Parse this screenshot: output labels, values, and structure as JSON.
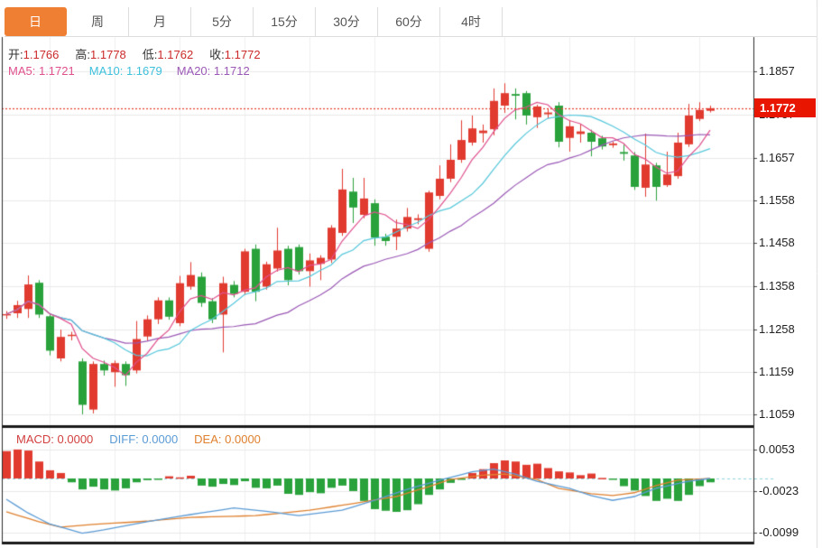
{
  "tabs": [
    {
      "label": "日",
      "active": true
    },
    {
      "label": "周",
      "active": false
    },
    {
      "label": "月",
      "active": false
    },
    {
      "label": "5分",
      "active": false
    },
    {
      "label": "15分",
      "active": false
    },
    {
      "label": "30分",
      "active": false
    },
    {
      "label": "60分",
      "active": false
    },
    {
      "label": "4时",
      "active": false
    }
  ],
  "quote": {
    "open_label": "开:",
    "open": "1.1766",
    "high_label": "高:",
    "high": "1.1778",
    "low_label": "低:",
    "low": "1.1762",
    "close_label": "收:",
    "close": "1.1772"
  },
  "ma": {
    "ma5_label": "MA5:",
    "ma5": "1.1721",
    "ma10_label": "MA10:",
    "ma10": "1.1679",
    "ma20_label": "MA20:",
    "ma20": "1.1712"
  },
  "macd_header": {
    "macd_label": "MACD:",
    "macd": "0.0000",
    "diff_label": "DIFF:",
    "diff": "0.0000",
    "dea_label": "DEA:",
    "dea": "0.0000"
  },
  "price_tag": "1.1772",
  "colors": {
    "up": "#e13b30",
    "down": "#2aa23c",
    "ma5": "#e0508e",
    "ma10": "#56c8dc",
    "ma20": "#9b59b6",
    "diff": "#5b9bd5",
    "dea": "#e0812f",
    "dotted_price_line": "#e83a2a",
    "tag_bg": "#e81600",
    "grid": "#e9e9e9",
    "axis": "#2b2b2b",
    "zero_dash": "#8fd4dc",
    "tab_active_bg": "#ee7f33"
  },
  "chart_data": {
    "type": "candlestick",
    "title": "",
    "legend_position": "top-left",
    "grid": true,
    "main": {
      "current_price": 1.1772,
      "ma_periods": [
        5,
        10,
        20
      ],
      "axis_ticks": [
        {
          "label": "1.1857",
          "price": 1.1857
        },
        {
          "label": "1.1757",
          "price": 1.1757
        },
        {
          "label": "1.1657",
          "price": 1.1657
        },
        {
          "label": "1.1558",
          "price": 1.1558
        },
        {
          "label": "1.1458",
          "price": 1.1458
        },
        {
          "label": "1.1358",
          "price": 1.1358
        },
        {
          "label": "1.1258",
          "price": 1.1258
        },
        {
          "label": "1.1159",
          "price": 1.1159
        },
        {
          "label": "1.1059",
          "price": 1.1059
        }
      ],
      "candles_ohlc": [
        [
          1.129,
          1.13,
          1.1282,
          1.1293
        ],
        [
          1.1295,
          1.1324,
          1.1284,
          1.1314
        ],
        [
          1.1305,
          1.1383,
          1.1284,
          1.1362
        ],
        [
          1.1366,
          1.1372,
          1.1284,
          1.1292
        ],
        [
          1.1288,
          1.1295,
          1.1197,
          1.1208
        ],
        [
          1.119,
          1.1257,
          1.1183,
          1.124
        ],
        [
          1.1242,
          1.1252,
          1.1232,
          1.1245
        ],
        [
          1.1183,
          1.119,
          1.106,
          1.1082
        ],
        [
          1.1071,
          1.1183,
          1.1062,
          1.1177
        ],
        [
          1.1177,
          1.1185,
          1.115,
          1.1162
        ],
        [
          1.1158,
          1.1185,
          1.1124,
          1.1179
        ],
        [
          1.1177,
          1.1183,
          1.1126,
          1.1151
        ],
        [
          1.1162,
          1.1277,
          1.1155,
          1.1235
        ],
        [
          1.1241,
          1.129,
          1.1232,
          1.1281
        ],
        [
          1.1281,
          1.1332,
          1.127,
          1.1325
        ],
        [
          1.1325,
          1.1332,
          1.128,
          1.1287
        ],
        [
          1.1272,
          1.1382,
          1.1265,
          1.1365
        ],
        [
          1.1357,
          1.1414,
          1.135,
          1.1384
        ],
        [
          1.138,
          1.139,
          1.131,
          1.1319
        ],
        [
          1.1323,
          1.133,
          1.1272,
          1.1281
        ],
        [
          1.1292,
          1.138,
          1.1204,
          1.1365
        ],
        [
          1.1361,
          1.137,
          1.1332,
          1.134
        ],
        [
          1.1345,
          1.1445,
          1.1338,
          1.1439
        ],
        [
          1.1445,
          1.1455,
          1.1323,
          1.1345
        ],
        [
          1.1357,
          1.1415,
          1.135,
          1.1409
        ],
        [
          1.1399,
          1.1494,
          1.1392,
          1.1441
        ],
        [
          1.1445,
          1.1452,
          1.136,
          1.1372
        ],
        [
          1.1449,
          1.1455,
          1.1385,
          1.1393
        ],
        [
          1.1393,
          1.1434,
          1.1357,
          1.1418
        ],
        [
          1.141,
          1.143,
          1.1372,
          1.1424
        ],
        [
          1.142,
          1.15,
          1.1412,
          1.1494
        ],
        [
          1.1482,
          1.1631,
          1.1475,
          1.1583
        ],
        [
          1.1578,
          1.161,
          1.1505,
          1.1541
        ],
        [
          1.1524,
          1.161,
          1.1516,
          1.1562
        ],
        [
          1.1551,
          1.156,
          1.1452,
          1.1471
        ],
        [
          1.1473,
          1.148,
          1.1452,
          1.1463
        ],
        [
          1.1473,
          1.1513,
          1.1442,
          1.1492
        ],
        [
          1.1492,
          1.154,
          1.1485,
          1.1519
        ],
        [
          1.1512,
          1.1525,
          1.1502,
          1.1516
        ],
        [
          1.1445,
          1.158,
          1.1438,
          1.1576
        ],
        [
          1.1568,
          1.1639,
          1.156,
          1.1608
        ],
        [
          1.1608,
          1.1688,
          1.16,
          1.1652
        ],
        [
          1.1652,
          1.1744,
          1.1645,
          1.1698
        ],
        [
          1.1692,
          1.1755,
          1.1685,
          1.1725
        ],
        [
          1.1714,
          1.1734,
          1.1692,
          1.172
        ],
        [
          1.1723,
          1.1818,
          1.1709,
          1.1789
        ],
        [
          1.1778,
          1.183,
          1.1761,
          1.1807
        ],
        [
          1.1805,
          1.1818,
          1.1746,
          1.1801
        ],
        [
          1.1807,
          1.1812,
          1.1734,
          1.1755
        ],
        [
          1.1751,
          1.178,
          1.1726,
          1.1776
        ],
        [
          1.1758,
          1.1772,
          1.1748,
          1.1762
        ],
        [
          1.1778,
          1.1786,
          1.1681,
          1.1694
        ],
        [
          1.1703,
          1.1744,
          1.1671,
          1.173
        ],
        [
          1.1712,
          1.1734,
          1.1692,
          1.1718
        ],
        [
          1.1715,
          1.1722,
          1.166,
          1.1694
        ],
        [
          1.1702,
          1.1708,
          1.1676,
          1.1683
        ],
        [
          1.1686,
          1.1694,
          1.168,
          1.169
        ],
        [
          1.167,
          1.1687,
          1.165,
          1.1666
        ],
        [
          1.1662,
          1.167,
          1.1582,
          1.1589
        ],
        [
          1.1587,
          1.1713,
          1.1566,
          1.1641
        ],
        [
          1.1639,
          1.1645,
          1.1557,
          1.1589
        ],
        [
          1.1593,
          1.1671,
          1.1589,
          1.1618
        ],
        [
          1.1614,
          1.1715,
          1.1608,
          1.1692
        ],
        [
          1.1688,
          1.1782,
          1.1682,
          1.1755
        ],
        [
          1.1747,
          1.1786,
          1.1742,
          1.1768
        ],
        [
          1.1766,
          1.1778,
          1.1762,
          1.1772
        ]
      ]
    },
    "macd": {
      "axis_ticks": [
        {
          "label": "0.0053",
          "value": 0.0053
        },
        {
          "label": "-0.0023",
          "value": -0.0023
        },
        {
          "label": "-0.0099",
          "value": -0.0099
        }
      ],
      "histogram": [
        0.005,
        0.0053,
        0.0051,
        0.0031,
        0.0015,
        0.001,
        -0.0007,
        -0.002,
        -0.0015,
        -0.002,
        -0.0022,
        -0.0018,
        -0.0007,
        -0.0003,
        -0.0001,
        0.0004,
        0.0002,
        0.0005,
        -0.0013,
        -0.0015,
        -0.001,
        -0.0012,
        -0.0005,
        -0.0017,
        -0.0018,
        -0.0013,
        -0.0028,
        -0.003,
        -0.0025,
        -0.0027,
        -0.0017,
        -0.0013,
        -0.0023,
        -0.0041,
        -0.0056,
        -0.0059,
        -0.0061,
        -0.0058,
        -0.0047,
        -0.003,
        -0.002,
        -0.0008,
        -0.0001,
        0.001,
        0.0017,
        0.0028,
        0.0033,
        0.0031,
        0.0025,
        0.0027,
        0.0019,
        0.0013,
        0.0011,
        0.0006,
        0.0009,
        0.0001,
        -0.0001,
        -0.0014,
        -0.0022,
        -0.0032,
        -0.0041,
        -0.0037,
        -0.0041,
        -0.003,
        -0.0014,
        -0.0007
      ],
      "diff_points": [
        [
          0,
          -0.0038
        ],
        [
          2,
          -0.0063
        ],
        [
          4,
          -0.0083
        ],
        [
          7,
          -0.01
        ],
        [
          9,
          -0.0094
        ],
        [
          13,
          -0.0079
        ],
        [
          16,
          -0.0069
        ],
        [
          21,
          -0.0054
        ],
        [
          24,
          -0.006
        ],
        [
          27,
          -0.0068
        ],
        [
          31,
          -0.0058
        ],
        [
          34,
          -0.004
        ],
        [
          37,
          -0.002
        ],
        [
          40,
          -0.0003
        ],
        [
          43,
          0.0012
        ],
        [
          45,
          0.0017
        ],
        [
          47,
          0.0008
        ],
        [
          49,
          -0.0005
        ],
        [
          52,
          -0.0018
        ],
        [
          54,
          -0.0031
        ],
        [
          56,
          -0.004
        ],
        [
          58,
          -0.0033
        ],
        [
          60,
          -0.0018
        ],
        [
          63,
          -0.0005
        ],
        [
          65,
          0.0
        ]
      ],
      "dea_points": [
        [
          0,
          -0.0061
        ],
        [
          3,
          -0.0079
        ],
        [
          5,
          -0.0089
        ],
        [
          8,
          -0.0084
        ],
        [
          13,
          -0.0078
        ],
        [
          17,
          -0.0071
        ],
        [
          23,
          -0.0068
        ],
        [
          28,
          -0.0058
        ],
        [
          32,
          -0.0046
        ],
        [
          36,
          -0.0033
        ],
        [
          39,
          -0.0015
        ],
        [
          41,
          -0.0002
        ],
        [
          44,
          0.0006
        ],
        [
          46,
          0.0008
        ],
        [
          49,
          -0.0002
        ],
        [
          51,
          -0.0018
        ],
        [
          54,
          -0.0028
        ],
        [
          56,
          -0.0031
        ],
        [
          58,
          -0.0026
        ],
        [
          60,
          -0.0013
        ],
        [
          62,
          -0.0003
        ],
        [
          65,
          0.0
        ]
      ]
    }
  }
}
